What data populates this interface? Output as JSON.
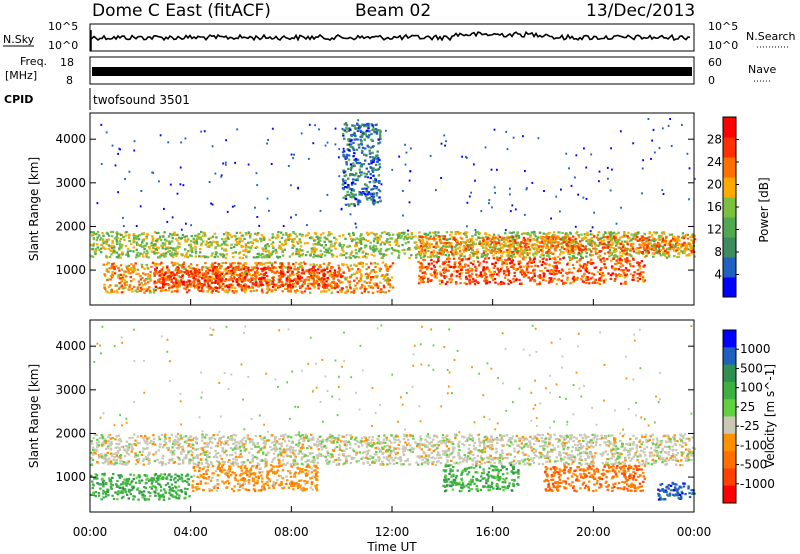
{
  "header": {
    "station": "Dome C East (fitACF)",
    "beam": "Beam 02",
    "date": "13/Dec/2013"
  },
  "left_labels": {
    "nsky": "N.Sky",
    "nsky_tick_top": "10^5",
    "nsky_tick_bottom": "10^0",
    "freq": "Freq.",
    "freq_unit": "[MHz]",
    "freq_tick_top": "18",
    "freq_tick_bottom": "8",
    "cpid": "CPID"
  },
  "right_labels": {
    "nsearch": "N.Search",
    "nsearch_tick_top": "10^5",
    "nsearch_tick_bottom": "10^0",
    "nave": "Nave",
    "nave_tick_top": "60",
    "nave_tick_bottom": "0"
  },
  "cpid_value": "twofsound 3501",
  "colors": {
    "frame": "#000000",
    "power_scale": [
      "#0000ff",
      "#2060c0",
      "#3c8c60",
      "#50a850",
      "#7cc040",
      "#ffaa00",
      "#ff7000",
      "#ff3000",
      "#ff0000"
    ],
    "velocity_scale": [
      "#0000ff",
      "#1f5fc0",
      "#2f8f50",
      "#3cb040",
      "#60d040",
      "#c8c8b4",
      "#ff9000",
      "#ff7000",
      "#ff4000",
      "#ff0000"
    ]
  },
  "chart_data": [
    {
      "type": "heatmap",
      "name_panel": "power",
      "xlabel": "",
      "ylabel": "Slant Range [km]",
      "x_ticks": [
        "00:00",
        "04:00",
        "08:00",
        "12:00",
        "16:00",
        "20:00",
        "00:00"
      ],
      "y_ticks": [
        1000,
        2000,
        3000,
        4000
      ],
      "ylim": [
        200,
        4600
      ],
      "colorbar": {
        "label": "Power [dB]",
        "ticks": [
          4,
          8,
          12,
          16,
          20,
          24,
          28
        ],
        "range": [
          0,
          32
        ]
      },
      "bands": [
        {
          "t_start": 0,
          "t_end": 24,
          "r_min": 1300,
          "r_max": 1900,
          "value": 16
        },
        {
          "t_start": 0.5,
          "t_end": 12,
          "r_min": 500,
          "r_max": 1200,
          "value": 22
        },
        {
          "t_start": 13,
          "t_end": 22,
          "r_min": 700,
          "r_max": 1300,
          "value": 26
        },
        {
          "t_start": 2.5,
          "t_end": 10,
          "r_min": 600,
          "r_max": 1100,
          "value": 28
        },
        {
          "t_start": 13,
          "t_end": 24,
          "r_min": 1400,
          "r_max": 1800,
          "value": 24
        },
        {
          "t_start": 10,
          "t_end": 11.5,
          "r_min": 2500,
          "r_max": 4400,
          "value": 6
        }
      ]
    },
    {
      "type": "heatmap",
      "name_panel": "velocity",
      "xlabel": "Time UT",
      "ylabel": "Slant Range [km]",
      "x_ticks": [
        "00:00",
        "04:00",
        "08:00",
        "12:00",
        "16:00",
        "20:00",
        "00:00"
      ],
      "y_ticks": [
        1000,
        2000,
        3000,
        4000
      ],
      "ylim": [
        200,
        4600
      ],
      "colorbar": {
        "label": "Velocity [m s^-1]",
        "ticks": [
          "1000",
          "500",
          "100",
          "25",
          "-25",
          "-100",
          "-500",
          "-1000"
        ]
      },
      "bands": [
        {
          "t_start": 0,
          "t_end": 24,
          "r_min": 1300,
          "r_max": 2000,
          "value": "0"
        },
        {
          "t_start": 0,
          "t_end": 4,
          "r_min": 500,
          "r_max": 1100,
          "value": "100"
        },
        {
          "t_start": 4,
          "t_end": 9,
          "r_min": 700,
          "r_max": 1300,
          "value": "-100"
        },
        {
          "t_start": 14,
          "t_end": 17,
          "r_min": 700,
          "r_max": 1300,
          "value": "100"
        },
        {
          "t_start": 18,
          "t_end": 22,
          "r_min": 700,
          "r_max": 1300,
          "value": "-500"
        },
        {
          "t_start": 22.5,
          "t_end": 24,
          "r_min": 500,
          "r_max": 900,
          "value": "500"
        }
      ]
    }
  ]
}
